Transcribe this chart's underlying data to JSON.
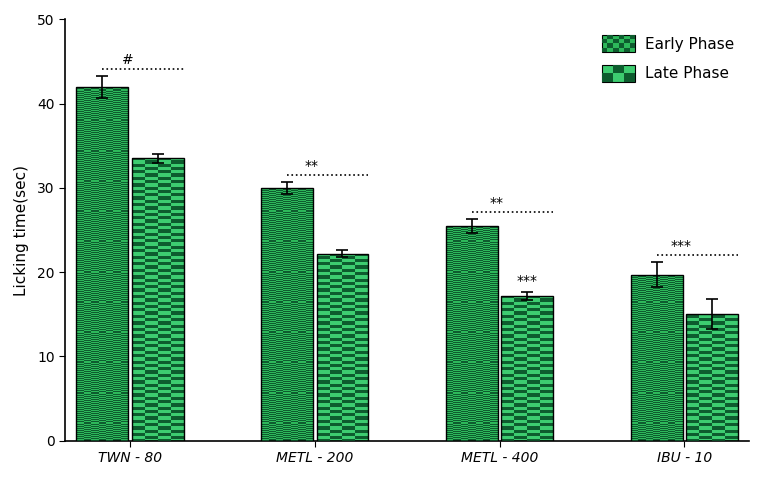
{
  "categories": [
    "TWN - 80",
    "METL - 200",
    "METL - 400",
    "IBU - 10"
  ],
  "early_phase_values": [
    42.0,
    30.0,
    25.5,
    19.7
  ],
  "late_phase_values": [
    33.5,
    22.2,
    17.2,
    15.0
  ],
  "early_phase_errors": [
    1.3,
    0.7,
    0.8,
    1.5
  ],
  "late_phase_errors": [
    0.5,
    0.4,
    0.5,
    1.8
  ],
  "early_dark_color": "#0d5c2e",
  "early_light_color": "#2db85a",
  "late_dark_color": "#0d5c2e",
  "late_light_color": "#3dcc70",
  "bar_edge_color": "#000000",
  "ylabel": "Licking time(sec)",
  "ylim": [
    0,
    50
  ],
  "yticks": [
    0,
    10,
    20,
    30,
    40,
    50
  ],
  "sig_labels": [
    "#",
    "**",
    "**",
    "***"
  ],
  "sig_late_labels": [
    null,
    null,
    "***",
    null
  ],
  "bar_width": 0.28,
  "figsize": [
    7.63,
    4.79
  ],
  "dpi": 100
}
